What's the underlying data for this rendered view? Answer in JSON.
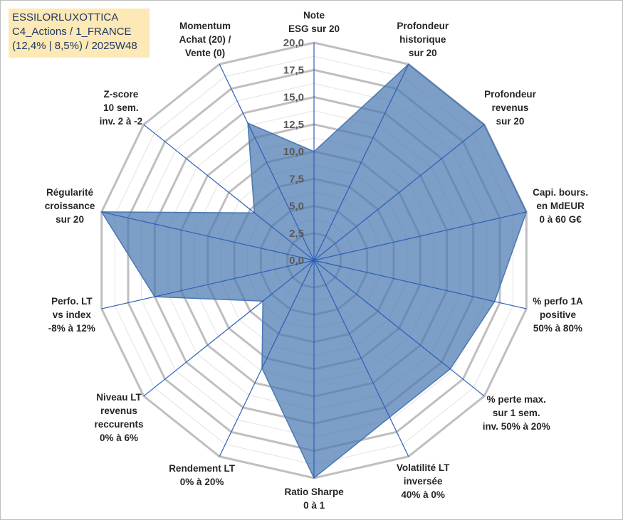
{
  "title": {
    "line1": "ESSILORLUXOTTICA",
    "line2": "C4_Actions / 1_FRANCE",
    "line3": "(12,4% | 8,5%) / 2025W48"
  },
  "colors": {
    "fill": "#4a78b2",
    "axis": "#2e5fb8",
    "grid_major": "#bfbfbf",
    "grid_minor": "#e3e3e3",
    "text": "#262626",
    "tick": "#595959",
    "title_bg": "#fde9b6",
    "title_text": "#1f3864"
  },
  "chart_data": {
    "type": "radar",
    "scale": {
      "min": 0,
      "max": 20,
      "major_step": 2.5,
      "minor_step": 1.25
    },
    "tick_labels": [
      "0,0",
      "2,5",
      "5,0",
      "7,5",
      "10,0",
      "12,5",
      "15,0",
      "17,5",
      "20,0"
    ],
    "axes": [
      {
        "label": [
          "Note",
          "ESG sur 20"
        ],
        "value": 10
      },
      {
        "label": [
          "Profondeur",
          "historique",
          "sur 20"
        ],
        "value": 20
      },
      {
        "label": [
          "Profondeur",
          "revenus",
          "sur 20"
        ],
        "value": 20
      },
      {
        "label": [
          "Capi. bours.",
          "en MdEUR",
          "0 à 60 G€"
        ],
        "value": 20
      },
      {
        "label": [
          "% perfo 1A",
          "positive",
          "50% à 80%"
        ],
        "value": 17
      },
      {
        "label": [
          "% perte max.",
          "sur 1 sem.",
          "inv. 50% à 20%"
        ],
        "value": 16
      },
      {
        "label": [
          "Volatilité LT",
          "inversée",
          "40% à 0%"
        ],
        "value": 16
      },
      {
        "label": [
          "Ratio Sharpe",
          "0 à 1"
        ],
        "value": 20
      },
      {
        "label": [
          "Rendement LT",
          "0% à 20%"
        ],
        "value": 11
      },
      {
        "label": [
          "Niveau LT",
          "revenus",
          "reccurents",
          "0% à 6%"
        ],
        "value": 6
      },
      {
        "label": [
          "Perfo. LT",
          "vs index",
          "-8% à 12%"
        ],
        "value": 15
      },
      {
        "label": [
          "Régularité",
          "croissance",
          "sur 20"
        ],
        "value": 20
      },
      {
        "label": [
          "Z-score",
          "10 sem.",
          "inv. 2 à -2"
        ],
        "value": 7
      },
      {
        "label": [
          "Momentum",
          "Achat (20) /",
          "Vente (0)"
        ],
        "value": 14
      }
    ]
  }
}
